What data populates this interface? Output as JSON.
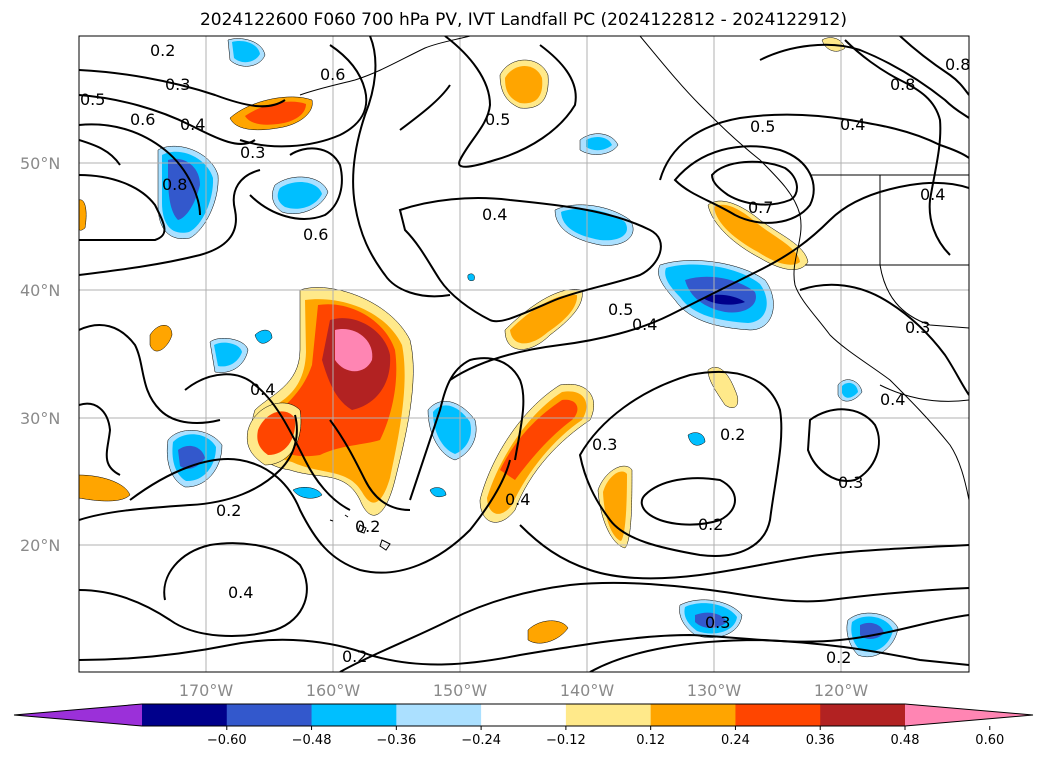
{
  "title": "2024122600 F060 700 hPa PV, IVT Landfall PC (2024122812 - 2024122912)",
  "latitudes": [
    "50°N",
    "40°N",
    "30°N",
    "20°N"
  ],
  "longitudes": [
    "170°W",
    "160°W",
    "150°W",
    "140°W",
    "130°W",
    "120°W"
  ],
  "colorbar": {
    "colors": [
      "#9b30d9",
      "#00008b",
      "#3358cc",
      "#00bfff",
      "#abe0ff",
      "#ffffff",
      "#ffe98a",
      "#ffa500",
      "#ff4500",
      "#b22222",
      "#ff85b3"
    ],
    "ticks": [
      "−0.60",
      "−0.48",
      "−0.36",
      "−0.24",
      "−0.12",
      "0.12",
      "0.24",
      "0.36",
      "0.48",
      "0.60"
    ]
  },
  "contour_labels": [
    "0.2",
    "0.3",
    "0.5",
    "0.6",
    "0.4",
    "0.8",
    "0.3",
    "0.6",
    "0.6",
    "0.4",
    "0.5",
    "0.5",
    "0.4",
    "0.7",
    "0.4",
    "0.8",
    "0.8",
    "0.4",
    "0.5",
    "0.4",
    "0.3",
    "0.2",
    "0.3",
    "0.2",
    "0.2",
    "0.4",
    "0.2",
    "0.2",
    "0.4",
    "0.3",
    "0.4",
    "0.3",
    "0.2"
  ]
}
